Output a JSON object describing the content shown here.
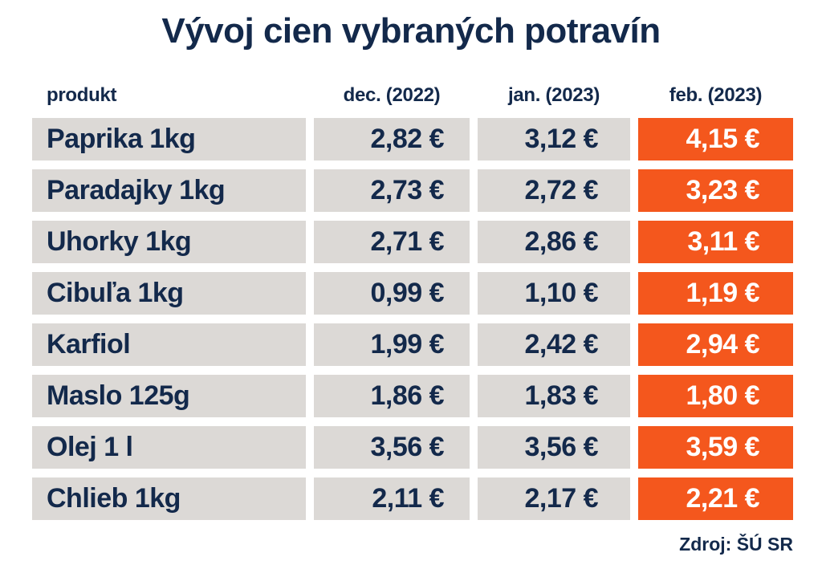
{
  "page": {
    "title": "Vývoj cien vybraných potravín",
    "source": "Zdroj: ŠÚ SR"
  },
  "colors": {
    "navy": "#13294B",
    "orange": "#F4571D",
    "cell_gray": "#DCD9D6",
    "white": "#FFFFFF"
  },
  "chart_data": {
    "type": "table",
    "title": "Vývoj cien vybraných potravín",
    "columns": [
      "produkt",
      "dec. (2022)",
      "jan. (2023)",
      "feb. (2023)"
    ],
    "highlight_column": "feb. (2023)",
    "highlight_style": "orange background, white text",
    "rows": [
      {
        "produkt": "Paprika 1kg",
        "dec": "2,82 €",
        "jan": "3,12 €",
        "feb": "4,15 €"
      },
      {
        "produkt": "Paradajky 1kg",
        "dec": "2,73 €",
        "jan": "2,72 €",
        "feb": "3,23 €"
      },
      {
        "produkt": "Uhorky 1kg",
        "dec": "2,71 €",
        "jan": "2,86 €",
        "feb": "3,11 €"
      },
      {
        "produkt": "Cibuľa 1kg",
        "dec": "0,99 €",
        "jan": "1,10 €",
        "feb": "1,19 €"
      },
      {
        "produkt": "Karfiol",
        "dec": "1,99 €",
        "jan": "2,42 €",
        "feb": "2,94 €"
      },
      {
        "produkt": "Maslo 125g",
        "dec": "1,86 €",
        "jan": "1,83 €",
        "feb": "1,80 €"
      },
      {
        "produkt": "Olej 1 l",
        "dec": "3,56 €",
        "jan": "3,56 €",
        "feb": "3,59 €"
      },
      {
        "produkt": "Chlieb 1kg",
        "dec": "2,11 €",
        "jan": "2,17 €",
        "feb": "2,21 €"
      }
    ],
    "categories": [
      "Paprika 1kg",
      "Paradajky 1kg",
      "Uhorky 1kg",
      "Cibuľa 1kg",
      "Karfiol",
      "Maslo 125g",
      "Olej 1 l",
      "Chlieb 1kg"
    ],
    "series": [
      {
        "name": "dec. (2022)",
        "values": [
          2.82,
          2.73,
          2.71,
          0.99,
          1.99,
          1.86,
          3.56,
          2.11
        ]
      },
      {
        "name": "jan. (2023)",
        "values": [
          3.12,
          2.72,
          2.86,
          1.1,
          2.42,
          1.83,
          3.56,
          2.17
        ]
      },
      {
        "name": "feb. (2023)",
        "values": [
          4.15,
          3.23,
          3.11,
          1.19,
          2.94,
          1.8,
          3.59,
          2.21
        ]
      }
    ],
    "source": "Zdroj: ŠÚ SR"
  }
}
